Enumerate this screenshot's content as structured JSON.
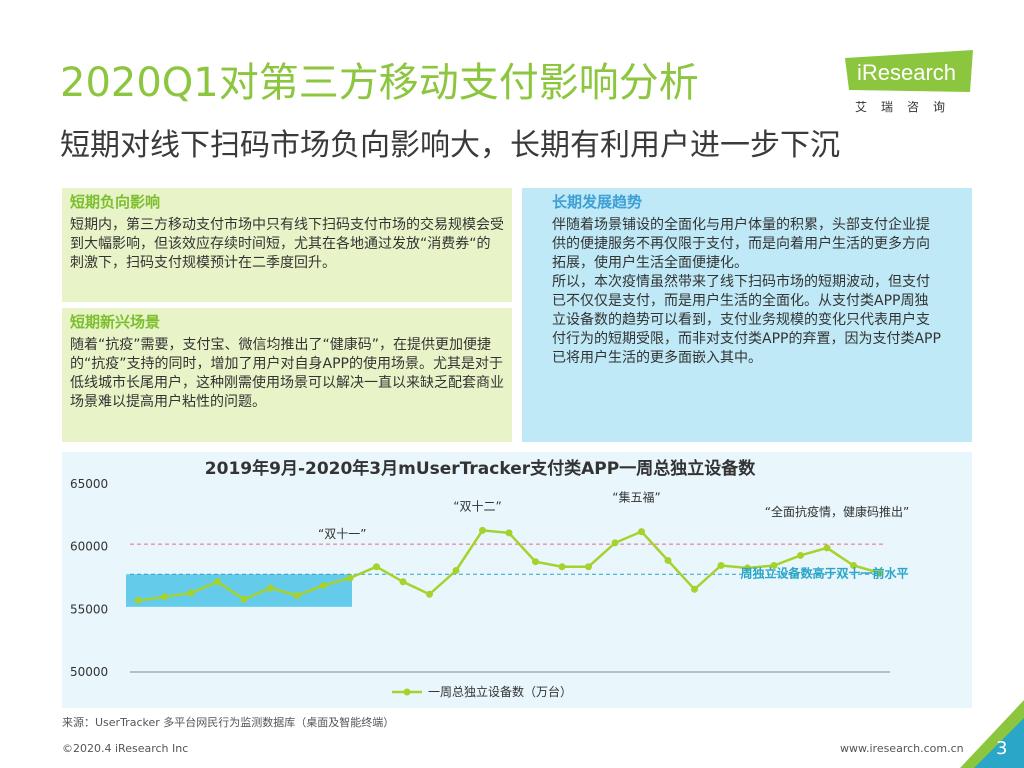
{
  "header": {
    "title": "2020Q1对第三方移动支付影响分析",
    "subtitle": "短期对线下扫码市场负向影响大，长期有利用户进一步下沉"
  },
  "logo": {
    "brand": "iResearch",
    "chinese": "艾瑞咨询"
  },
  "panels": {
    "short_negative": {
      "heading": "短期负向影响",
      "body": "短期内，第三方移动支付市场中只有线下扫码支付市场的交易规模会受到大幅影响，但该效应存续时间短，尤其在各地通过发放“消费券“的刺激下，扫码支付规模预计在二季度回升。"
    },
    "short_new": {
      "heading": "短期新兴场景",
      "body": "随着“抗疫”需要，支付宝、微信均推出了“健康码”，在提供更加便捷的“抗疫”支持的同时，增加了用户对自身APP的使用场景。尤其是对于低线城市长尾用户，这种刚需使用场景可以解决一直以来缺乏配套商业场景难以提高用户粘性的问题。"
    },
    "long_trend": {
      "heading": "长期发展趋势",
      "body": "伴随着场景铺设的全面化与用户体量的积累，头部支付企业提供的便捷服务不再仅限于支付，而是向着用户生活的更多方向拓展，使用户生活全面便捷化。\n所以，本次疫情虽然带来了线下扫码市场的短期波动，但支付已不仅仅是支付，而是用户生活的全面化。从支付类APP周独立设备数的趋势可以看到，支付业务规模的变化只代表用户支付行为的短期受限，而非对支付类APP的弃置，因为支付类APP已将用户生活的更多面嵌入其中。"
    }
  },
  "chart_data": {
    "type": "line",
    "title": "2019年9月-2020年3月mUserTracker支付类APP一周总独立设备数",
    "series": [
      {
        "name": "一周总独立设备数（万台）",
        "values": [
          55700,
          56000,
          56300,
          57200,
          55800,
          56700,
          56100,
          56900,
          57500,
          58400,
          57200,
          56200,
          58100,
          61300,
          61100,
          58800,
          58400,
          58400,
          60300,
          61200,
          58900,
          56600,
          58500,
          58300,
          58500,
          59300,
          59900,
          58500,
          57900
        ]
      }
    ],
    "ylim": [
      50000,
      65000
    ],
    "yticks": [
      50000,
      55000,
      60000,
      65000
    ],
    "reference_lines": [
      {
        "value": 60200,
        "color": "#e56b8a"
      },
      {
        "value": 57800,
        "color": "#2aa6c9"
      }
    ],
    "annotations": [
      {
        "text": "“双十一”",
        "index": 8
      },
      {
        "text": "“双十二”",
        "index": 13
      },
      {
        "text": "“集五福”",
        "index": 19
      },
      {
        "text": "“全面抗疫情，健康码推出”",
        "index": 26
      },
      {
        "text": "周独立设备数高于双十一前水平",
        "index": 27
      }
    ],
    "highlight": {
      "from_index": 0,
      "to_index": 8,
      "color": "#4cc3e8"
    },
    "colors": {
      "line": "#a6d22e",
      "axis": "#888888"
    },
    "grid": false,
    "legend": "bottom"
  },
  "source": "来源：UserTracker 多平台网民行为监测数据库（桌面及智能终端）",
  "footer": {
    "copyright": "©2020.4 iResearch Inc",
    "website": "www.iresearch.com.cn",
    "page": "3"
  }
}
